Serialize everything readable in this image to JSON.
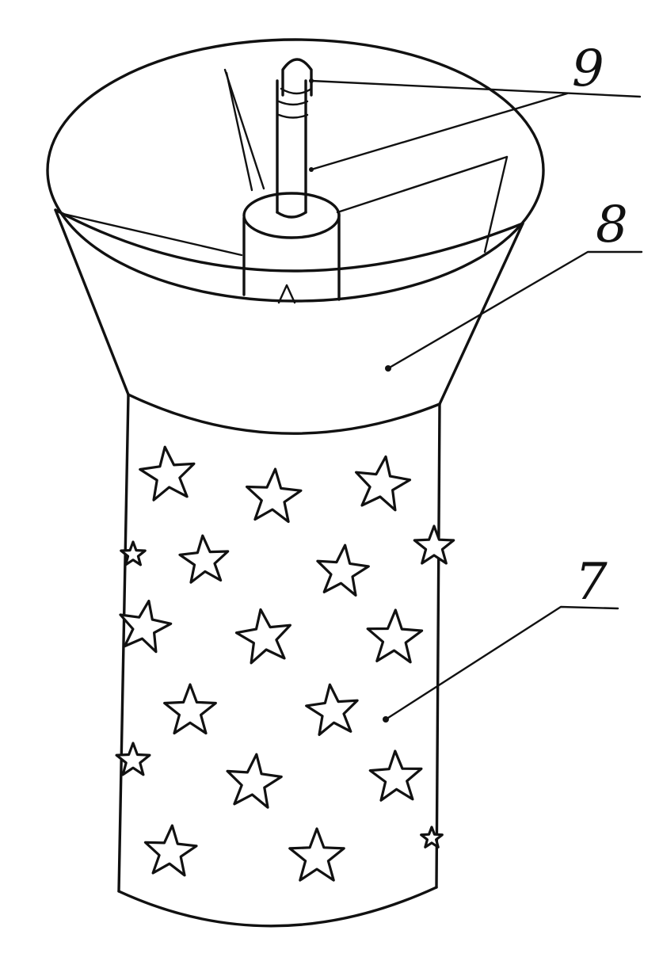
{
  "figure": {
    "callouts": [
      {
        "id": "9",
        "label": "9"
      },
      {
        "id": "8",
        "label": "8"
      },
      {
        "id": "7",
        "label": "7"
      }
    ]
  }
}
